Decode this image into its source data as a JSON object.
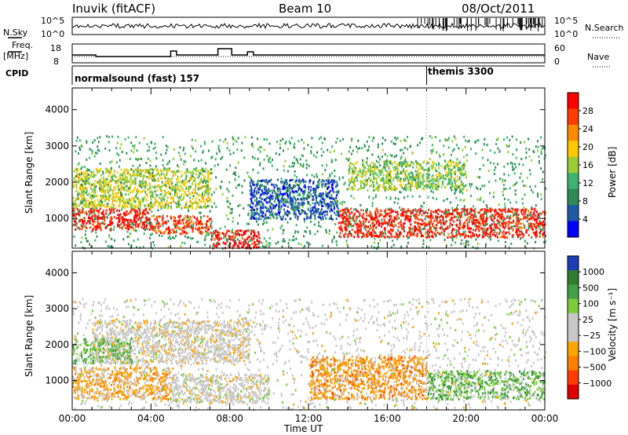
{
  "header": {
    "station": "Inuvik (fitACF)",
    "beam": "Beam 10",
    "date": "08/Oct/2011"
  },
  "side_labels": {
    "nsky": "N.Sky",
    "freq": "Freq.",
    "freq_unit": "[MHz]",
    "cpid": "CPID",
    "nsearch": "N.Search",
    "nave": "Nave"
  },
  "small_axes": {
    "nsky_ticks": [
      "10^5",
      "10^0"
    ],
    "nsearch_ticks": [
      "10^5",
      "10^0"
    ],
    "freq_ticks": [
      "18",
      "8"
    ],
    "nave_ticks": [
      "60",
      "0"
    ]
  },
  "cpid": {
    "left": "normalsound (fast) 157",
    "right": "themis 3300",
    "switch_hour": 18
  },
  "chart_data": [
    {
      "type": "heatmap",
      "name": "power",
      "ylabel": "Slant Range [km]",
      "yticks": [
        1000,
        2000,
        3000,
        4000
      ],
      "ylim": [
        180,
        4600
      ],
      "xlim": [
        0,
        24
      ],
      "cbar_label": "Power [dB]",
      "cbar_ticks": [
        "28",
        "24",
        "20",
        "16",
        "12",
        "8",
        "4"
      ],
      "cbar_colors": [
        "#ff0000",
        "#ff3c00",
        "#ff8a00",
        "#ffc800",
        "#9acd32",
        "#3cb371",
        "#2e8b57",
        "#1e5aa8",
        "#0000ff"
      ],
      "regions": [
        {
          "x": [
            0.0,
            4.0
          ],
          "y": [
            700,
            1300
          ],
          "level": 0.92
        },
        {
          "x": [
            4.0,
            7.0
          ],
          "y": [
            600,
            1100
          ],
          "level": 0.85
        },
        {
          "x": [
            7.0,
            9.5
          ],
          "y": [
            200,
            700
          ],
          "level": 0.98
        },
        {
          "x": [
            13.5,
            24.0
          ],
          "y": [
            500,
            1300
          ],
          "level": 0.9
        },
        {
          "x": [
            0.0,
            7.0
          ],
          "y": [
            1300,
            2400
          ],
          "level": 0.55
        },
        {
          "x": [
            9.0,
            13.5
          ],
          "y": [
            1000,
            2100
          ],
          "level": 0.15
        },
        {
          "x": [
            14.0,
            20.0
          ],
          "y": [
            1800,
            2600
          ],
          "level": 0.5
        },
        {
          "x": [
            0.0,
            24.0
          ],
          "y": [
            200,
            3300
          ],
          "level": 0.35
        }
      ]
    },
    {
      "type": "heatmap",
      "name": "velocity",
      "ylabel": "Slant Range [km]",
      "yticks": [
        1000,
        2000,
        3000,
        4000
      ],
      "ylim": [
        180,
        4600
      ],
      "xlim": [
        0,
        24
      ],
      "xticks": [
        "00:00",
        "04:00",
        "08:00",
        "12:00",
        "16:00",
        "20:00",
        "00:00"
      ],
      "xlabel": "Time UT",
      "cbar_label": "Velocity [m s⁻¹]",
      "cbar_ticks": [
        "1000",
        "500",
        "100",
        "25",
        "−25",
        "−100",
        "−500",
        "−1000"
      ],
      "cbar_colors": [
        "#1e3cb4",
        "#2e7d32",
        "#43a047",
        "#7ccd3c",
        "#c8c8c8",
        "#c8c8c8",
        "#ffa500",
        "#ff7f00",
        "#ff3c00",
        "#e00000"
      ],
      "regions": [
        {
          "x": [
            0.0,
            5.0
          ],
          "y": [
            500,
            1400
          ],
          "level": 0.35
        },
        {
          "x": [
            5.0,
            10.0
          ],
          "y": [
            400,
            1200
          ],
          "level": 0.5
        },
        {
          "x": [
            1.0,
            9.0
          ],
          "y": [
            1500,
            2700
          ],
          "level": 0.48
        },
        {
          "x": [
            12.0,
            18.0
          ],
          "y": [
            500,
            1700
          ],
          "level": 0.3
        },
        {
          "x": [
            18.0,
            24.0
          ],
          "y": [
            500,
            1300
          ],
          "level": 0.7
        },
        {
          "x": [
            0.0,
            3.0
          ],
          "y": [
            1500,
            2200
          ],
          "level": 0.68
        },
        {
          "x": [
            0.0,
            24.0
          ],
          "y": [
            200,
            3300
          ],
          "level": 0.5
        }
      ]
    }
  ]
}
